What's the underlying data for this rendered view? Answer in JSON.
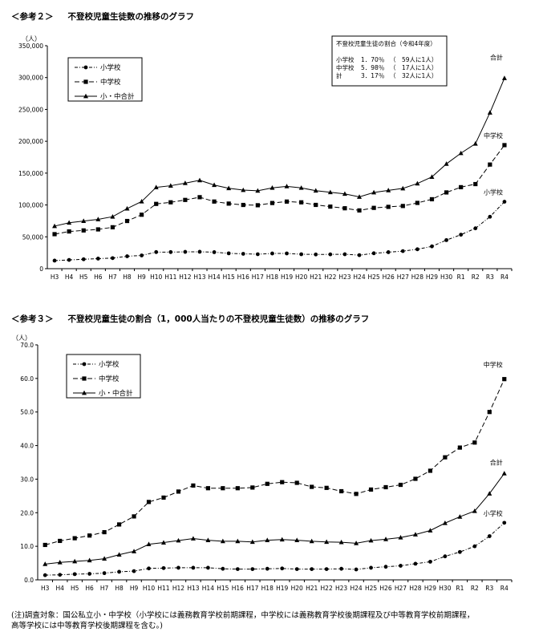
{
  "chart_data": [
    {
      "type": "line",
      "heading": {
        "tag": "＜参考２＞",
        "title": "不登校児童生徒数の推移のグラフ"
      },
      "yunit": "（人）",
      "ylim": [
        0,
        350000
      ],
      "yticks": [
        "0",
        "50,000",
        "100,000",
        "150,000",
        "200,000",
        "250,000",
        "300,000",
        "350,000"
      ],
      "categories": [
        "H3",
        "H4",
        "H5",
        "H6",
        "H7",
        "H8",
        "H9",
        "H10",
        "H11",
        "H12",
        "H13",
        "H14",
        "H15",
        "H16",
        "H17",
        "H18",
        "H19",
        "H20",
        "H21",
        "H22",
        "H23",
        "H24",
        "H25",
        "H26",
        "H27",
        "H28",
        "H29",
        "H30",
        "R1",
        "R2",
        "R3",
        "R4"
      ],
      "grid": false,
      "legend_position": "top-left",
      "series": [
        {
          "name": "小学校",
          "end_label": "小学校",
          "marker": "circle",
          "dash": "dashdot",
          "values": [
            12645,
            13710,
            14769,
            15786,
            16569,
            19498,
            20765,
            26017,
            26047,
            26373,
            26511,
            25869,
            24077,
            23318,
            22709,
            23825,
            23927,
            22652,
            22327,
            22463,
            22622,
            21243,
            24175,
            25864,
            27583,
            30448,
            35032,
            44841,
            53350,
            63350,
            81498,
            105112
          ]
        },
        {
          "name": "中学校",
          "end_label": "中学校",
          "marker": "square",
          "dash": "dash",
          "values": [
            54172,
            58421,
            60039,
            61663,
            65022,
            74853,
            84701,
            101675,
            104180,
            107913,
            112211,
            105383,
            102149,
            100040,
            99578,
            103069,
            105328,
            104153,
            100105,
            97428,
            94836,
            91446,
            95442,
            97033,
            98408,
            103235,
            108999,
            119687,
            127922,
            132777,
            163442,
            193936
          ]
        },
        {
          "name": "小・中合計",
          "end_label": "合計",
          "marker": "triangle",
          "dash": "solid",
          "values": [
            66817,
            72131,
            74808,
            77449,
            81591,
            94351,
            105466,
            127692,
            130227,
            134286,
            138722,
            131252,
            126226,
            123358,
            122287,
            126894,
            129255,
            126805,
            122432,
            119891,
            117458,
            112689,
            119617,
            122897,
            125991,
            133683,
            144031,
            164528,
            181272,
            196127,
            244940,
            299048
          ]
        }
      ],
      "inset_box": {
        "title": "不登校児童生徒の割合（令和4年度）",
        "rows": [
          {
            "label": "小学校",
            "pct": "1．70％",
            "ratio": "（　59人に1人）"
          },
          {
            "label": "中学校",
            "pct": "5．98％",
            "ratio": "（　17人に1人）"
          },
          {
            "label": "計",
            "pct": "3．17％",
            "ratio": "（　32人に1人）"
          }
        ]
      }
    },
    {
      "type": "line",
      "heading": {
        "tag": "＜参考３＞",
        "title": "不登校児童生徒の割合（1，000人当たりの不登校児童生徒数）の推移のグラフ"
      },
      "yunit": "（人）",
      "ylim": [
        0,
        70
      ],
      "yticks": [
        "0.0",
        "10.0",
        "20.0",
        "30.0",
        "40.0",
        "50.0",
        "60.0",
        "70.0"
      ],
      "categories": [
        "H3",
        "H4",
        "H5",
        "H6",
        "H7",
        "H8",
        "H9",
        "H10",
        "H11",
        "H12",
        "H13",
        "H14",
        "H15",
        "H16",
        "H17",
        "H18",
        "H19",
        "H20",
        "H21",
        "H22",
        "H23",
        "H24",
        "H25",
        "H26",
        "H27",
        "H28",
        "H29",
        "H30",
        "R1",
        "R2",
        "R3",
        "R4"
      ],
      "grid": false,
      "legend_position": "top-left",
      "series": [
        {
          "name": "小学校",
          "end_label": "小学校",
          "marker": "circle",
          "dash": "dashdot",
          "values": [
            1.4,
            1.5,
            1.7,
            1.8,
            2.0,
            2.4,
            2.6,
            3.4,
            3.5,
            3.6,
            3.6,
            3.6,
            3.3,
            3.2,
            3.2,
            3.3,
            3.4,
            3.2,
            3.2,
            3.2,
            3.3,
            3.1,
            3.6,
            3.9,
            4.2,
            4.8,
            5.4,
            7.0,
            8.3,
            10.0,
            13.0,
            17.0
          ]
        },
        {
          "name": "中学校",
          "end_label": "中学校",
          "marker": "square",
          "dash": "dash",
          "values": [
            10.4,
            11.6,
            12.4,
            13.2,
            14.2,
            16.5,
            18.9,
            23.2,
            24.5,
            26.3,
            28.1,
            27.3,
            27.3,
            27.3,
            27.5,
            28.6,
            29.1,
            28.9,
            27.7,
            27.4,
            26.4,
            25.6,
            26.9,
            27.6,
            28.3,
            30.1,
            32.5,
            36.5,
            39.4,
            40.9,
            50.0,
            59.8
          ]
        },
        {
          "name": "小・中合計",
          "end_label": "合計",
          "marker": "triangle",
          "dash": "solid",
          "values": [
            4.7,
            5.2,
            5.5,
            5.8,
            6.3,
            7.5,
            8.5,
            10.6,
            11.1,
            11.7,
            12.3,
            11.8,
            11.5,
            11.5,
            11.3,
            11.8,
            12.0,
            11.8,
            11.5,
            11.3,
            11.2,
            10.9,
            11.7,
            12.1,
            12.6,
            13.5,
            14.7,
            16.9,
            18.8,
            20.5,
            25.7,
            31.7
          ]
        }
      ]
    }
  ],
  "note": {
    "line1": "(注)調査対象：国公私立小・中学校（小学校には義務教育学校前期課程，中学校には義務教育学校後期課程及び中等教育学校前期課程，",
    "line2": "高等学校には中等教育学校後期課程を含む。)"
  }
}
